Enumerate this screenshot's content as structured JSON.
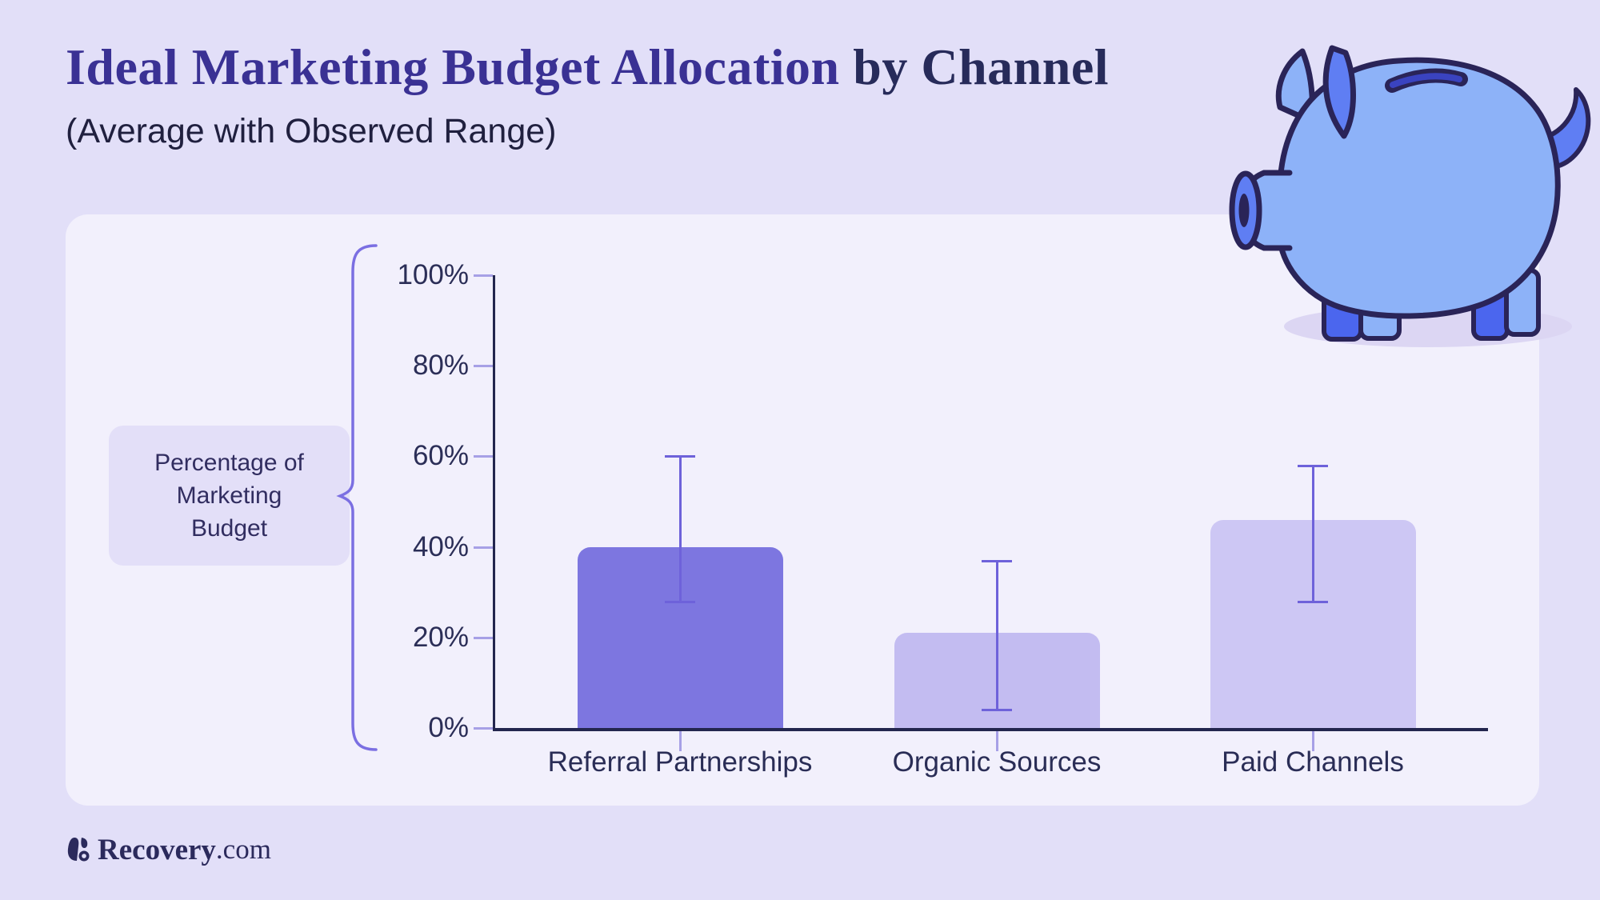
{
  "page": {
    "background": "#e2dff8",
    "panel_background": "#f2f0fc"
  },
  "header": {
    "title_primary": "Ideal Marketing Budget Allocation",
    "title_secondary": "by Channel",
    "subtitle": "(Average with Observed Range)"
  },
  "label_box": {
    "lines": [
      "Percentage of",
      "Marketing",
      "Budget"
    ]
  },
  "footer": {
    "brand_bold": "Recovery",
    "brand_suffix": ".com"
  },
  "chart_data": {
    "type": "bar",
    "title": "Ideal Marketing Budget Allocation by Channel",
    "subtitle": "(Average with Observed Range)",
    "ylabel": "Percentage of Marketing Budget",
    "categories": [
      "Referral Partnerships",
      "Organic Sources",
      "Paid Channels"
    ],
    "values": [
      40,
      21,
      46
    ],
    "error_low": [
      28,
      4,
      28
    ],
    "error_high": [
      60,
      37,
      58
    ],
    "unit": "%",
    "ylim": [
      0,
      100
    ],
    "y_ticks": [
      "0%",
      "20%",
      "40%",
      "60%",
      "80%",
      "100%"
    ],
    "grid": false,
    "legend": false,
    "bar_colors": [
      "#7d76e0",
      "#c3bcf1",
      "#cdc7f4"
    ],
    "error_color": "#6e62da",
    "axis_color": "#23264e"
  }
}
